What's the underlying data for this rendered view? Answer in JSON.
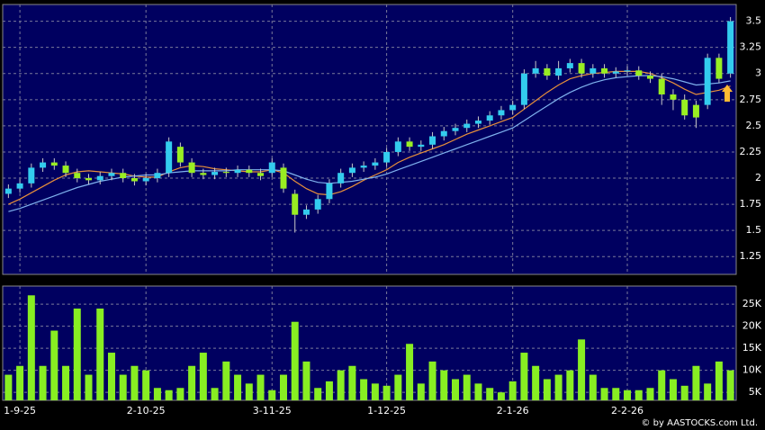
{
  "chart_data": [
    {
      "type": "candlestick",
      "categories": [
        null,
        "1-9-25",
        null,
        null,
        null,
        null,
        null,
        null,
        null,
        null,
        null,
        null,
        "2-10-25",
        null,
        null,
        null,
        null,
        null,
        null,
        null,
        null,
        null,
        null,
        "3-11-25",
        null,
        null,
        null,
        null,
        null,
        null,
        null,
        null,
        null,
        "1-12-25",
        null,
        null,
        null,
        null,
        null,
        null,
        null,
        null,
        null,
        null,
        "2-1-26",
        null,
        null,
        null,
        null,
        null,
        null,
        null,
        null,
        null,
        "2-2-26",
        null,
        null,
        null,
        null,
        null,
        null,
        null,
        null,
        null
      ],
      "open": [
        1.85,
        1.9,
        1.95,
        2.1,
        2.15,
        2.12,
        2.05,
        2.0,
        1.98,
        2.02,
        2.05,
        2.0,
        1.97,
        2.0,
        2.05,
        2.3,
        2.15,
        2.05,
        2.03,
        2.06,
        2.05,
        2.08,
        2.05,
        2.05,
        2.1,
        1.85,
        1.65,
        1.7,
        1.8,
        1.95,
        2.05,
        2.1,
        2.12,
        2.15,
        2.25,
        2.35,
        2.3,
        2.32,
        2.4,
        2.45,
        2.48,
        2.52,
        2.55,
        2.6,
        2.65,
        2.7,
        3.0,
        3.05,
        2.98,
        3.05,
        3.1,
        3.0,
        3.05,
        3.0,
        3.02,
        3.03,
        2.98,
        2.95,
        2.8,
        2.75,
        2.7,
        2.7,
        3.15,
        3.0
      ],
      "high": [
        1.94,
        1.99,
        2.14,
        2.19,
        2.19,
        2.16,
        2.09,
        2.04,
        2.06,
        2.09,
        2.09,
        2.04,
        2.04,
        2.09,
        2.39,
        2.34,
        2.19,
        2.09,
        2.1,
        2.1,
        2.12,
        2.12,
        2.09,
        2.19,
        2.14,
        1.89,
        1.74,
        1.84,
        1.99,
        2.09,
        2.14,
        2.16,
        2.19,
        2.29,
        2.39,
        2.39,
        2.36,
        2.44,
        2.49,
        2.52,
        2.56,
        2.59,
        2.64,
        2.69,
        2.74,
        3.04,
        3.12,
        3.09,
        3.12,
        3.14,
        3.14,
        3.09,
        3.09,
        3.06,
        3.07,
        3.07,
        3.02,
        3.0,
        2.85,
        2.8,
        2.74,
        3.19,
        3.19,
        3.54
      ],
      "low": [
        1.81,
        1.86,
        1.91,
        2.06,
        2.08,
        2.01,
        1.96,
        1.94,
        1.94,
        1.98,
        1.96,
        1.93,
        1.93,
        1.96,
        2.01,
        2.11,
        2.01,
        1.99,
        1.99,
        2.01,
        2.01,
        2.01,
        1.98,
        2.01,
        1.86,
        1.48,
        1.61,
        1.66,
        1.76,
        1.91,
        2.01,
        2.06,
        2.08,
        2.11,
        2.21,
        2.26,
        2.26,
        2.28,
        2.36,
        2.41,
        2.44,
        2.48,
        2.51,
        2.56,
        2.61,
        2.66,
        2.96,
        2.94,
        2.94,
        3.01,
        2.96,
        2.96,
        2.96,
        2.96,
        2.98,
        2.94,
        2.91,
        2.7,
        2.65,
        2.56,
        2.48,
        2.66,
        2.91,
        2.96
      ],
      "close": [
        1.9,
        1.95,
        2.1,
        2.15,
        2.12,
        2.05,
        2.0,
        1.98,
        2.02,
        2.05,
        2.0,
        1.97,
        2.0,
        2.05,
        2.35,
        2.15,
        2.05,
        2.03,
        2.06,
        2.05,
        2.08,
        2.05,
        2.02,
        2.15,
        1.9,
        1.65,
        1.7,
        1.8,
        1.95,
        2.05,
        2.1,
        2.12,
        2.15,
        2.25,
        2.35,
        2.3,
        2.32,
        2.4,
        2.45,
        2.48,
        2.52,
        2.55,
        2.6,
        2.65,
        2.7,
        3.0,
        3.05,
        2.98,
        3.05,
        3.1,
        3.0,
        3.05,
        3.0,
        3.02,
        3.03,
        2.98,
        2.95,
        2.8,
        2.75,
        2.6,
        2.58,
        3.15,
        2.95,
        3.5
      ],
      "up_color": "#33ccee",
      "down_color": "#99ee22",
      "lines": [
        {
          "color": "#e8903a",
          "values": [
            1.75,
            1.8,
            1.86,
            1.92,
            1.98,
            2.03,
            2.06,
            2.07,
            2.06,
            2.05,
            2.04,
            2.02,
            2.01,
            2.01,
            2.06,
            2.1,
            2.12,
            2.11,
            2.09,
            2.08,
            2.07,
            2.06,
            2.06,
            2.08,
            2.05,
            1.97,
            1.9,
            1.85,
            1.84,
            1.87,
            1.92,
            1.98,
            2.03,
            2.08,
            2.15,
            2.2,
            2.24,
            2.28,
            2.32,
            2.37,
            2.42,
            2.46,
            2.5,
            2.54,
            2.58,
            2.66,
            2.74,
            2.82,
            2.89,
            2.95,
            2.98,
            3.0,
            3.01,
            3.02,
            3.02,
            3.02,
            3.0,
            2.96,
            2.91,
            2.85,
            2.8,
            2.82,
            2.84,
            2.88
          ]
        },
        {
          "color": "#7fb2ee",
          "values": [
            1.68,
            1.71,
            1.75,
            1.79,
            1.83,
            1.87,
            1.91,
            1.94,
            1.97,
            1.99,
            2.01,
            2.02,
            2.03,
            2.03,
            2.05,
            2.06,
            2.07,
            2.07,
            2.07,
            2.07,
            2.08,
            2.08,
            2.08,
            2.08,
            2.07,
            2.03,
            1.99,
            1.96,
            1.95,
            1.96,
            1.97,
            1.99,
            2.01,
            2.04,
            2.08,
            2.12,
            2.16,
            2.2,
            2.24,
            2.28,
            2.32,
            2.36,
            2.4,
            2.44,
            2.48,
            2.55,
            2.62,
            2.69,
            2.76,
            2.82,
            2.87,
            2.91,
            2.94,
            2.96,
            2.97,
            2.98,
            2.98,
            2.97,
            2.95,
            2.92,
            2.89,
            2.9,
            2.91,
            2.93
          ]
        }
      ],
      "ylim": [
        1.08,
        3.66
      ],
      "yticks": [
        1.25,
        1.5,
        1.75,
        2,
        2.25,
        2.5,
        2.75,
        3,
        3.25,
        3.5
      ],
      "grid": true
    },
    {
      "type": "bar",
      "color": "#88ee22",
      "values": [
        9000,
        11000,
        27000,
        11000,
        19000,
        11000,
        24000,
        9000,
        24000,
        14000,
        9000,
        11000,
        10000,
        6000,
        5500,
        6000,
        11000,
        14000,
        6000,
        12000,
        9000,
        7000,
        9000,
        5500,
        9000,
        21000,
        12000,
        6000,
        7500,
        10000,
        11000,
        8000,
        7000,
        6500,
        9000,
        16000,
        7000,
        12000,
        10000,
        8000,
        9000,
        7000,
        6000,
        5000,
        7500,
        14000,
        11000,
        8000,
        9000,
        10000,
        17000,
        9000,
        6000,
        6000,
        5500,
        5500,
        6000,
        10000,
        8000,
        6500,
        11000,
        7000,
        12000,
        10000
      ],
      "ylim": [
        3200,
        29100
      ],
      "yticks": [
        {
          "value": 5000,
          "label": "5K"
        },
        {
          "value": 10000,
          "label": "10K"
        },
        {
          "value": 15000,
          "label": "15K"
        },
        {
          "value": 20000,
          "label": "20K"
        },
        {
          "value": 25000,
          "label": "25K"
        }
      ],
      "grid": true
    }
  ],
  "copyright": "© by AASTOCKS.com Ltd."
}
